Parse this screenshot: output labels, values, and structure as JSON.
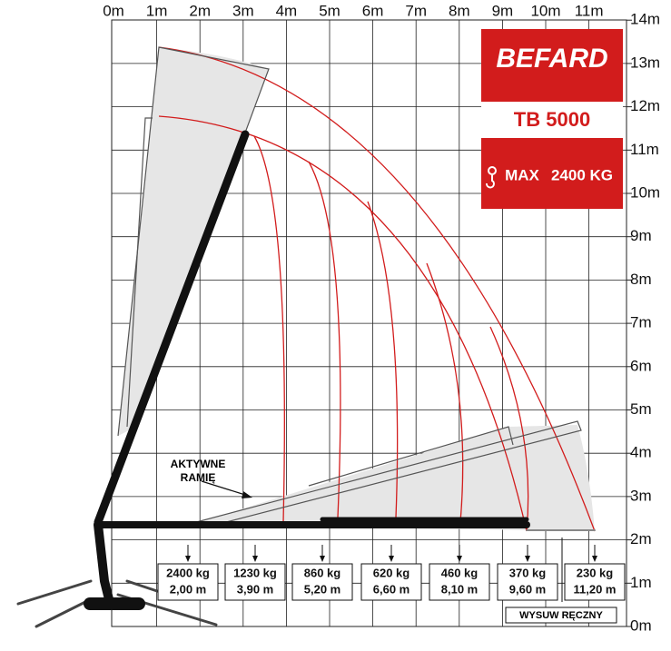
{
  "x_axis_labels": [
    "0m",
    "1m",
    "2m",
    "3m",
    "4m",
    "5m",
    "6m",
    "7m",
    "8m",
    "9m",
    "10m",
    "11m"
  ],
  "y_axis_labels": [
    "0m",
    "1m",
    "2m",
    "3m",
    "4m",
    "5m",
    "6m",
    "7m",
    "8m",
    "9m",
    "10m",
    "11m",
    "12m",
    "13m",
    "14m"
  ],
  "logo": {
    "brand": "BEFARD",
    "model": "TB 5000",
    "max_label": "MAX",
    "max_value": "2400 KG"
  },
  "annotation": {
    "lines": [
      "AKTYWNE",
      "RAMIĘ"
    ]
  },
  "loads": [
    {
      "weight": "2400 kg",
      "distance": "2,00 m"
    },
    {
      "weight": "1230 kg",
      "distance": "3,90 m"
    },
    {
      "weight": "860 kg",
      "distance": "5,20 m"
    },
    {
      "weight": "620 kg",
      "distance": "6,60 m"
    },
    {
      "weight": "460 kg",
      "distance": "8,10 m"
    },
    {
      "weight": "370 kg",
      "distance": "9,60 m"
    },
    {
      "weight": "230 kg",
      "distance": "11,20 m"
    }
  ],
  "manual_extension": "WYSUW RĘCZNY"
}
